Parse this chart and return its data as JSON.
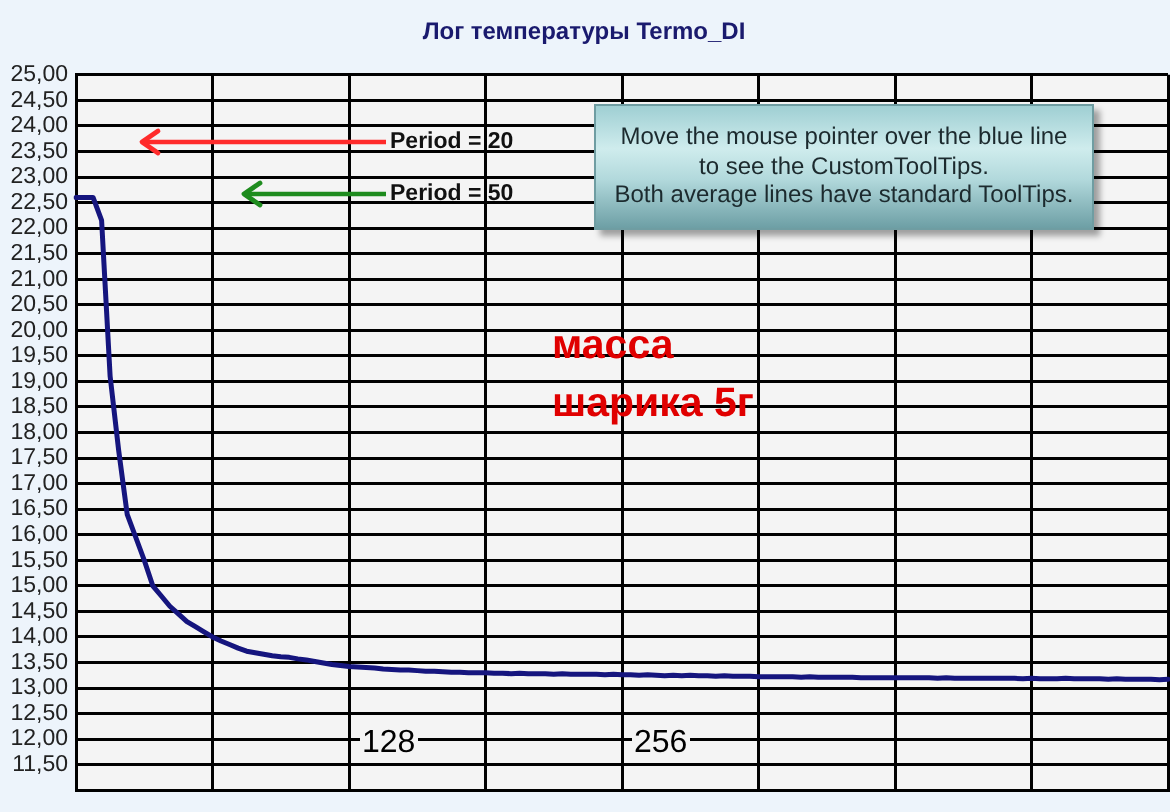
{
  "chart_data": {
    "type": "line",
    "title": "Лог температуры Termo_DI",
    "categories": [
      null,
      null,
      null,
      null,
      null,
      null,
      null,
      null,
      null,
      null,
      null,
      null,
      null,
      null,
      null,
      null,
      null,
      null,
      null,
      null,
      null,
      null,
      null,
      null,
      null,
      null,
      null,
      null,
      null,
      null,
      null,
      null,
      null,
      null,
      null,
      null,
      null,
      null,
      null,
      null,
      null,
      null,
      null,
      null,
      null,
      null,
      null,
      null,
      null,
      null,
      null,
      null,
      null,
      null,
      null,
      null,
      null,
      null,
      null,
      null,
      null,
      null,
      null,
      null,
      null,
      null,
      null,
      null,
      null,
      null,
      null,
      null,
      null,
      null,
      null,
      null,
      null,
      null,
      null,
      null,
      null,
      null,
      null,
      null,
      null,
      null,
      null,
      null,
      null,
      null,
      null,
      null,
      null,
      null,
      null,
      null,
      null,
      null,
      null,
      null,
      null,
      null,
      null,
      null,
      null,
      null,
      null,
      null,
      null,
      null,
      null,
      null,
      null,
      null,
      null,
      null,
      null,
      null,
      null,
      null,
      null,
      null,
      null,
      null,
      null,
      null,
      null,
      null,
      null
    ],
    "series": [
      {
        "color": "#15157e",
        "values": [
          22.6,
          22.6,
          22.6,
          22.15,
          19.1,
          17.65,
          16.4,
          15.95,
          15.5,
          15.0,
          14.8,
          14.6,
          14.45,
          14.3,
          14.2,
          14.1,
          14.0,
          13.92,
          13.85,
          13.78,
          13.72,
          13.69,
          13.66,
          13.63,
          13.61,
          13.6,
          13.57,
          13.55,
          13.52,
          13.49,
          13.46,
          13.44,
          13.42,
          13.41,
          13.4,
          13.39,
          13.37,
          13.36,
          13.35,
          13.35,
          13.34,
          13.33,
          13.33,
          13.32,
          13.31,
          13.31,
          13.3,
          13.3,
          13.3,
          13.29,
          13.29,
          13.28,
          13.29,
          13.28,
          13.28,
          13.28,
          13.27,
          13.28,
          13.27,
          13.27,
          13.27,
          13.27,
          13.26,
          13.27,
          13.26,
          13.26,
          13.25,
          13.26,
          13.25,
          13.24,
          13.25,
          13.24,
          13.25,
          13.24,
          13.24,
          13.23,
          13.24,
          13.23,
          13.23,
          13.23,
          13.22,
          13.22,
          13.22,
          13.22,
          13.22,
          13.21,
          13.22,
          13.21,
          13.21,
          13.21,
          13.21,
          13.21,
          13.2,
          13.2,
          13.2,
          13.2,
          13.2,
          13.2,
          13.2,
          13.2,
          13.2,
          13.19,
          13.2,
          13.19,
          13.19,
          13.19,
          13.19,
          13.19,
          13.19,
          13.19,
          13.19,
          13.18,
          13.19,
          13.18,
          13.18,
          13.18,
          13.19,
          13.18,
          13.18,
          13.18,
          13.18,
          13.17,
          13.18,
          13.17,
          13.17,
          13.17,
          13.17,
          13.16,
          13.17
        ]
      }
    ],
    "ylim": [
      11,
      25
    ],
    "yticks": [
      {
        "value": 11.5,
        "label": "11,50"
      },
      {
        "value": 12,
        "label": "12,00"
      },
      {
        "value": 12.5,
        "label": "12,50"
      },
      {
        "value": 13,
        "label": "13,00"
      },
      {
        "value": 13.5,
        "label": "13,50"
      },
      {
        "value": 14,
        "label": "14,00"
      },
      {
        "value": 14.5,
        "label": "14,50"
      },
      {
        "value": 15,
        "label": "15,00"
      },
      {
        "value": 15.5,
        "label": "15,50"
      },
      {
        "value": 16,
        "label": "16,00"
      },
      {
        "value": 16.5,
        "label": "16,50"
      },
      {
        "value": 17,
        "label": "17,00"
      },
      {
        "value": 17.5,
        "label": "17,50"
      },
      {
        "value": 18,
        "label": "18,00"
      },
      {
        "value": 18.5,
        "label": "18,50"
      },
      {
        "value": 19,
        "label": "19,00"
      },
      {
        "value": 19.5,
        "label": "19,50"
      },
      {
        "value": 20,
        "label": "20,00"
      },
      {
        "value": 20.5,
        "label": "20,50"
      },
      {
        "value": 21,
        "label": "21,00"
      },
      {
        "value": 21.5,
        "label": "21,50"
      },
      {
        "value": 22,
        "label": "22,00"
      },
      {
        "value": 22.5,
        "label": "22,50"
      },
      {
        "value": 23,
        "label": "23,00"
      },
      {
        "value": 23.5,
        "label": "23,50"
      },
      {
        "value": 24,
        "label": "24,00"
      },
      {
        "value": 24.5,
        "label": "24,50"
      },
      {
        "value": 25,
        "label": "25,00"
      }
    ],
    "tick_labels": "y",
    "grid": true,
    "legend": false,
    "marker": "none",
    "annotations": [
      "Period = 20",
      "Period = 50",
      "Move the mouse pointer over the blue line to see the CustomToolTips. Both average lines have standard ToolTips.",
      "масса шарика 5г",
      "128",
      "256"
    ]
  }
}
